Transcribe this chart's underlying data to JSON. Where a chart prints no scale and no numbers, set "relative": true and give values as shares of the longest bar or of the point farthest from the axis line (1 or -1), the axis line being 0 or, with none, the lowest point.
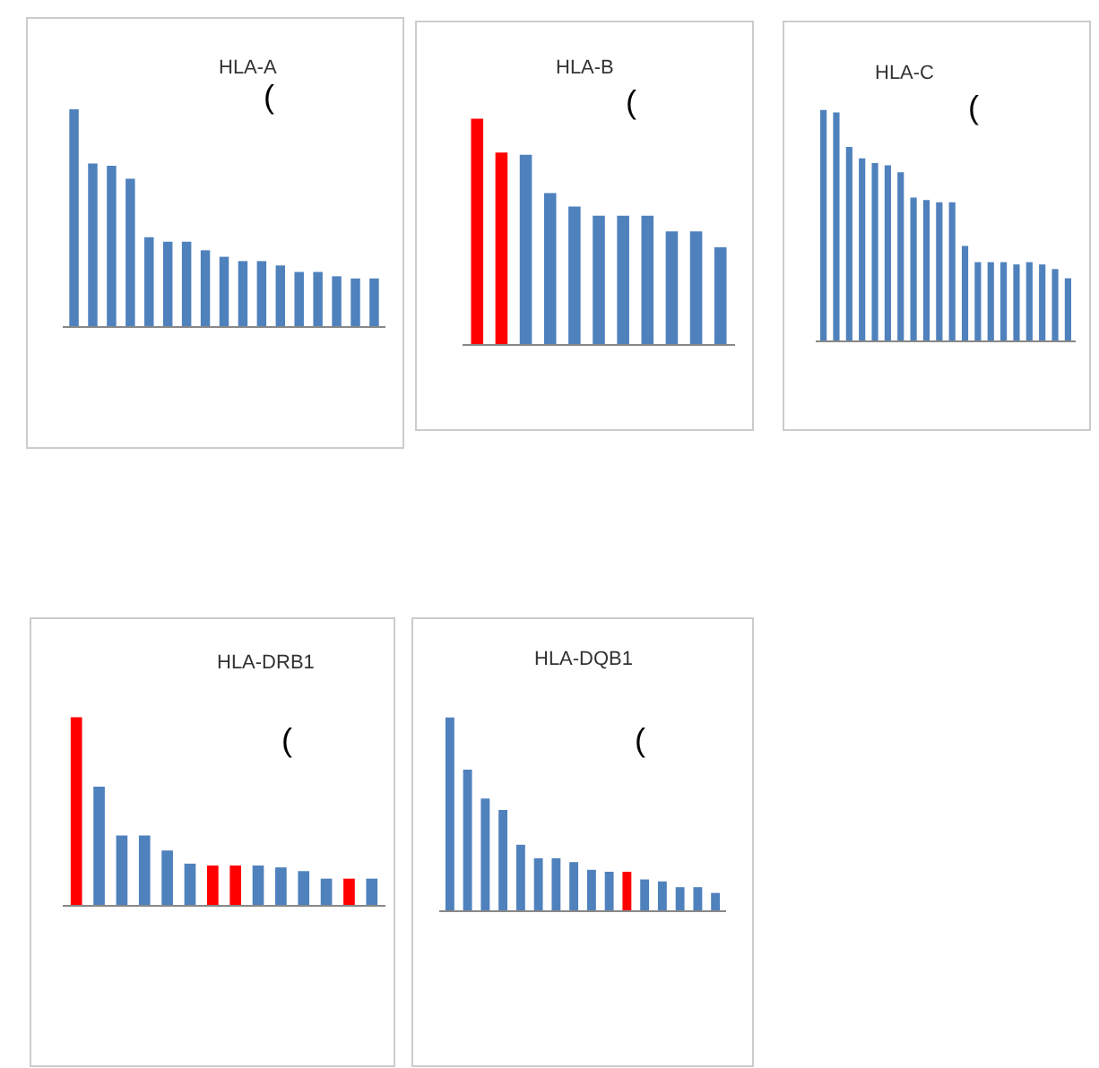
{
  "chart_data": [
    {
      "type": "bar",
      "title": "HLA-A",
      "relative": true,
      "categories": [
        null,
        null,
        null,
        null,
        null,
        null,
        null,
        null,
        null,
        null,
        null,
        null,
        null,
        null,
        null,
        null,
        null
      ],
      "values": [
        1,
        0.75,
        0.74,
        0.68,
        0.41,
        0.39,
        0.39,
        0.35,
        0.32,
        0.3,
        0.3,
        0.28,
        0.25,
        0.25,
        0.23,
        0.22,
        0.22
      ],
      "color": "#4f81bd",
      "annotations": [
        "("
      ]
    },
    {
      "type": "bar",
      "title": "HLA-B",
      "relative": true,
      "categories": [
        null,
        null,
        null,
        null,
        null,
        null,
        null,
        null,
        null,
        null,
        null
      ],
      "values": [
        1,
        0.85,
        0.84,
        0.67,
        0.61,
        0.57,
        0.57,
        0.57,
        0.5,
        0.5,
        0.43
      ],
      "colors": [
        "#ff0000",
        "#ff0000",
        "#4f81bd",
        "#4f81bd",
        "#4f81bd",
        "#4f81bd",
        "#4f81bd",
        "#4f81bd",
        "#4f81bd",
        "#4f81bd",
        "#4f81bd"
      ],
      "annotations": [
        "("
      ]
    },
    {
      "type": "bar",
      "title": "HLA-C",
      "relative": true,
      "categories": [
        null,
        null,
        null,
        null,
        null,
        null,
        null,
        null,
        null,
        null,
        null,
        null,
        null,
        null,
        null,
        null,
        null,
        null,
        null,
        null
      ],
      "values": [
        1,
        0.99,
        0.84,
        0.79,
        0.77,
        0.76,
        0.73,
        0.62,
        0.61,
        0.6,
        0.6,
        0.41,
        0.34,
        0.34,
        0.34,
        0.33,
        0.34,
        0.33,
        0.31,
        0.27
      ],
      "color": "#4f81bd",
      "annotations": [
        "("
      ]
    },
    {
      "type": "bar",
      "title": "HLA-DRB1",
      "relative": true,
      "categories": [
        null,
        null,
        null,
        null,
        null,
        null,
        null,
        null,
        null,
        null,
        null,
        null,
        null,
        null
      ],
      "values": [
        1,
        0.63,
        0.37,
        0.37,
        0.29,
        0.22,
        0.21,
        0.21,
        0.21,
        0.2,
        0.18,
        0.14,
        0.14,
        0.14
      ],
      "colors": [
        "#ff0000",
        "#4f81bd",
        "#4f81bd",
        "#4f81bd",
        "#4f81bd",
        "#4f81bd",
        "#ff0000",
        "#ff0000",
        "#4f81bd",
        "#4f81bd",
        "#4f81bd",
        "#4f81bd",
        "#ff0000",
        "#4f81bd"
      ],
      "annotations": [
        "("
      ]
    },
    {
      "type": "bar",
      "title": "HLA-DQB1",
      "relative": true,
      "categories": [
        null,
        null,
        null,
        null,
        null,
        null,
        null,
        null,
        null,
        null,
        null,
        null,
        null,
        null,
        null,
        null
      ],
      "values": [
        1,
        0.73,
        0.58,
        0.52,
        0.34,
        0.27,
        0.27,
        0.25,
        0.21,
        0.2,
        0.2,
        0.16,
        0.15,
        0.12,
        0.12,
        0.09
      ],
      "colors": [
        "#4f81bd",
        "#4f81bd",
        "#4f81bd",
        "#4f81bd",
        "#4f81bd",
        "#4f81bd",
        "#4f81bd",
        "#4f81bd",
        "#4f81bd",
        "#4f81bd",
        "#ff0000",
        "#4f81bd",
        "#4f81bd",
        "#4f81bd",
        "#4f81bd",
        "#4f81bd"
      ],
      "annotations": [
        "("
      ]
    }
  ]
}
